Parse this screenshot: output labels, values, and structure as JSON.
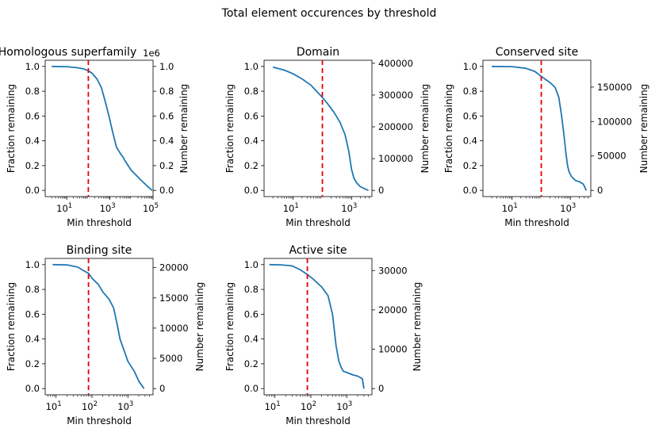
{
  "figure": {
    "title": "Total element occurences by threshold"
  },
  "chart_data": [
    {
      "type": "line",
      "title": "Homologous superfamily",
      "xlabel": "Min threshold",
      "ylabel": "Fraction remaining",
      "y2label": "Number remaining",
      "xscale": "log",
      "xlim": [
        1,
        100000
      ],
      "ylim": [
        -0.05,
        1.05
      ],
      "yticks": [
        "0.0",
        "0.2",
        "0.4",
        "0.6",
        "0.8",
        "1.0"
      ],
      "y2ticks": [
        "0.0",
        "0.2",
        "0.4",
        "0.6",
        "0.8",
        "1.0"
      ],
      "y2_offset": "1e6",
      "xticks": [
        {
          "base": "10",
          "exp": "1",
          "value": 10
        },
        {
          "base": "10",
          "exp": "3",
          "value": 1000
        },
        {
          "base": "10",
          "exp": "5",
          "value": 100000
        }
      ],
      "threshold": 100,
      "series": [
        {
          "name": "Fraction remaining",
          "color": "#1f77b4",
          "x": [
            2,
            10,
            30,
            60,
            100,
            150,
            250,
            400,
            600,
            900,
            1300,
            2000,
            3000,
            4000,
            5000,
            7000,
            10000,
            15000,
            25000,
            50000,
            90000
          ],
          "y": [
            1.0,
            0.998,
            0.99,
            0.98,
            0.965,
            0.945,
            0.9,
            0.83,
            0.72,
            0.6,
            0.48,
            0.35,
            0.3,
            0.27,
            0.24,
            0.2,
            0.16,
            0.13,
            0.09,
            0.04,
            0.0
          ]
        }
      ]
    },
    {
      "type": "line",
      "title": "Domain",
      "xlabel": "Min threshold",
      "ylabel": "Fraction remaining",
      "y2label": "Number remaining",
      "xscale": "log",
      "xlim": [
        1,
        5000
      ],
      "ylim": [
        -0.05,
        1.05
      ],
      "yticks": [
        "0.0",
        "0.2",
        "0.4",
        "0.6",
        "0.8",
        "1.0"
      ],
      "y2ticks": [
        "0",
        "100000",
        "200000",
        "300000",
        "400000"
      ],
      "y2max": 390000,
      "xticks": [
        {
          "base": "10",
          "exp": "1",
          "value": 10
        },
        {
          "base": "10",
          "exp": "3",
          "value": 1000
        }
      ],
      "threshold": 100,
      "series": [
        {
          "name": "Fraction remaining",
          "color": "#1f77b4",
          "x": [
            2,
            5,
            10,
            20,
            40,
            70,
            100,
            150,
            250,
            400,
            600,
            800,
            1000,
            1200,
            1500,
            2000,
            3000,
            3800
          ],
          "y": [
            0.995,
            0.97,
            0.94,
            0.9,
            0.85,
            0.79,
            0.75,
            0.7,
            0.63,
            0.55,
            0.45,
            0.32,
            0.17,
            0.1,
            0.06,
            0.03,
            0.01,
            0.0
          ]
        }
      ]
    },
    {
      "type": "line",
      "title": "Conserved site",
      "xlabel": "Min threshold",
      "ylabel": "Fraction remaining",
      "y2label": "Number remaining",
      "xscale": "log",
      "xlim": [
        1,
        5000
      ],
      "ylim": [
        -0.05,
        1.05
      ],
      "yticks": [
        "0.0",
        "0.2",
        "0.4",
        "0.6",
        "0.8",
        "1.0"
      ],
      "y2ticks": [
        "0",
        "50000",
        "100000",
        "150000"
      ],
      "y2max": 180000,
      "xticks": [
        {
          "base": "10",
          "exp": "1",
          "value": 10
        },
        {
          "base": "10",
          "exp": "3",
          "value": 1000
        }
      ],
      "threshold": 100,
      "series": [
        {
          "name": "Fraction remaining",
          "color": "#1f77b4",
          "x": [
            2,
            10,
            30,
            60,
            100,
            150,
            200,
            300,
            400,
            500,
            600,
            700,
            800,
            900,
            1100,
            1500,
            2000,
            2800,
            3500
          ],
          "y": [
            1.0,
            0.998,
            0.985,
            0.96,
            0.92,
            0.89,
            0.87,
            0.83,
            0.75,
            0.6,
            0.45,
            0.3,
            0.2,
            0.15,
            0.11,
            0.08,
            0.07,
            0.05,
            0.0
          ]
        }
      ]
    },
    {
      "type": "line",
      "title": "Binding site",
      "xlabel": "Min threshold",
      "ylabel": "Fraction remaining",
      "y2label": "Number remaining",
      "xscale": "log",
      "xlim": [
        5,
        5000
      ],
      "ylim": [
        -0.05,
        1.05
      ],
      "yticks": [
        "0.0",
        "0.2",
        "0.4",
        "0.6",
        "0.8",
        "1.0"
      ],
      "y2ticks": [
        "0",
        "5000",
        "10000",
        "15000",
        "20000"
      ],
      "y2max": 20500,
      "xticks": [
        {
          "base": "10",
          "exp": "1",
          "value": 10
        },
        {
          "base": "10",
          "exp": "2",
          "value": 100
        },
        {
          "base": "10",
          "exp": "3",
          "value": 1000
        }
      ],
      "threshold": 80,
      "series": [
        {
          "name": "Fraction remaining",
          "color": "#1f77b4",
          "x": [
            8,
            20,
            40,
            60,
            80,
            100,
            150,
            200,
            300,
            400,
            500,
            600,
            800,
            1000,
            1500,
            2000,
            2800
          ],
          "y": [
            1.0,
            0.998,
            0.98,
            0.95,
            0.93,
            0.89,
            0.84,
            0.78,
            0.72,
            0.65,
            0.52,
            0.4,
            0.3,
            0.22,
            0.14,
            0.06,
            0.0
          ]
        }
      ]
    },
    {
      "type": "line",
      "title": "Active site",
      "xlabel": "Min threshold",
      "ylabel": "Fraction remaining",
      "y2label": "Number remaining",
      "xscale": "log",
      "xlim": [
        5,
        5000
      ],
      "ylim": [
        -0.05,
        1.05
      ],
      "yticks": [
        "0.0",
        "0.2",
        "0.4",
        "0.6",
        "0.8",
        "1.0"
      ],
      "y2ticks": [
        "0",
        "10000",
        "20000",
        "30000"
      ],
      "y2max": 31500,
      "xticks": [
        {
          "base": "10",
          "exp": "1",
          "value": 10
        },
        {
          "base": "10",
          "exp": "2",
          "value": 100
        },
        {
          "base": "10",
          "exp": "3",
          "value": 1000
        }
      ],
      "threshold": 80,
      "series": [
        {
          "name": "Fraction remaining",
          "color": "#1f77b4",
          "x": [
            7,
            15,
            30,
            50,
            80,
            120,
            200,
            300,
            400,
            500,
            600,
            700,
            800,
            1000,
            1500,
            2000,
            2700,
            3000
          ],
          "y": [
            1.0,
            0.998,
            0.99,
            0.96,
            0.92,
            0.88,
            0.82,
            0.75,
            0.6,
            0.35,
            0.22,
            0.17,
            0.14,
            0.13,
            0.11,
            0.1,
            0.08,
            0.0
          ]
        }
      ]
    }
  ]
}
